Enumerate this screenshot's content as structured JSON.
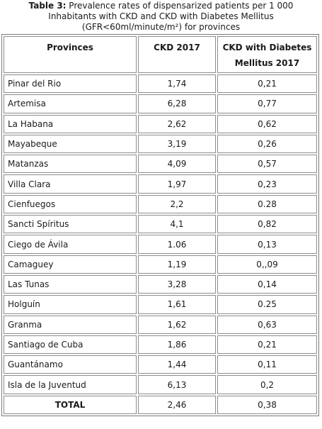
{
  "caption": {
    "label": "Table 3:",
    "line1": "Prevalence rates of dispensarized patients per 1 000",
    "line2": "Inhabitants with CKD and CKD with Diabetes Mellitus",
    "line3": "(GFR<60ml/minute/m²) for provinces"
  },
  "headers": {
    "provinces": "Provinces",
    "ckd": "CKD 2017",
    "ckd_dm_line1": "CKD with Diabetes",
    "ckd_dm_line2": "Mellitus 2017"
  },
  "rows": [
    {
      "province": "Pinar del Rio",
      "ckd": "1,74",
      "ckd_dm": "0,21"
    },
    {
      "province": "Artemisa",
      "ckd": "6,28",
      "ckd_dm": "0,77"
    },
    {
      "province": "La Habana",
      "ckd": "2,62",
      "ckd_dm": "0,62"
    },
    {
      "province": "Mayabeque",
      "ckd": "3,19",
      "ckd_dm": "0,26"
    },
    {
      "province": "Matanzas",
      "ckd": "4,09",
      "ckd_dm": "0,57"
    },
    {
      "province": "Villa Clara",
      "ckd": "1,97",
      "ckd_dm": "0,23"
    },
    {
      "province": "Cienfuegos",
      "ckd": "2,2",
      "ckd_dm": "0.28"
    },
    {
      "province": "Sancti Spíritus",
      "ckd": "4,1",
      "ckd_dm": "0,82"
    },
    {
      "province": "Ciego de Ávila",
      "ckd": "1.06",
      "ckd_dm": "0,13"
    },
    {
      "province": "Camaguey",
      "ckd": "1,19",
      "ckd_dm": "0,,09"
    },
    {
      "province": "Las Tunas",
      "ckd": "3,28",
      "ckd_dm": "0,14"
    },
    {
      "province": "Holguín",
      "ckd": "1,61",
      "ckd_dm": "0.25"
    },
    {
      "province": "Granma",
      "ckd": "1,62",
      "ckd_dm": "0,63"
    },
    {
      "province": "Santiago de Cuba",
      "ckd": "1,86",
      "ckd_dm": "0,21"
    },
    {
      "province": "Guantánamo",
      "ckd": "1,44",
      "ckd_dm": "0,11"
    },
    {
      "province": "Isla de la Juventud",
      "ckd": "6,13",
      "ckd_dm": "0,2"
    }
  ],
  "total": {
    "label": "TOTAL",
    "ckd": "2,46",
    "ckd_dm": "0,38"
  }
}
